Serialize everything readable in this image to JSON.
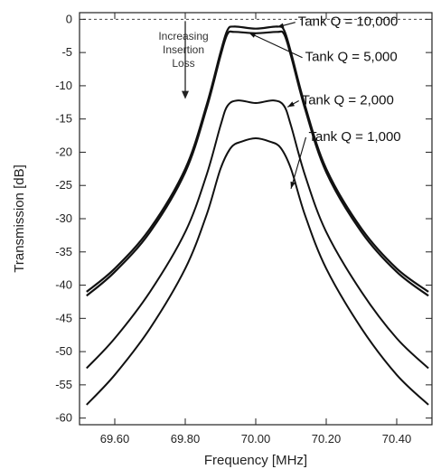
{
  "chart_data": {
    "type": "line",
    "title": "",
    "xlabel": "Frequency [MHz]",
    "ylabel": "Transmission [dB]",
    "xlim": [
      69.5,
      70.5
    ],
    "ylim": [
      -61,
      1
    ],
    "x_ticks": [
      {
        "value": 69.6,
        "label": "69.60"
      },
      {
        "value": 69.8,
        "label": "69.80"
      },
      {
        "value": 70.0,
        "label": "70.00"
      },
      {
        "value": 70.2,
        "label": "70.20"
      },
      {
        "value": 70.4,
        "label": "70.40"
      }
    ],
    "y_ticks": [
      {
        "value": 0,
        "label": "0"
      },
      {
        "value": -5,
        "label": "-5"
      },
      {
        "value": -10,
        "label": "-10"
      },
      {
        "value": -15,
        "label": "-15"
      },
      {
        "value": -20,
        "label": "-20"
      },
      {
        "value": -25,
        "label": "-25"
      },
      {
        "value": -30,
        "label": "-30"
      },
      {
        "value": -35,
        "label": "-35"
      },
      {
        "value": -40,
        "label": "-40"
      },
      {
        "value": -45,
        "label": "-45"
      },
      {
        "value": -50,
        "label": "-50"
      },
      {
        "value": -55,
        "label": "-55"
      },
      {
        "value": -60,
        "label": "-60"
      }
    ],
    "grid": false,
    "reference_line": {
      "y": 0,
      "style": "dashed"
    },
    "annotation": {
      "lines": [
        "Increasing",
        "Insertion",
        "Loss"
      ],
      "arrow_from_y": 0,
      "arrow_to_y": -12,
      "arrow_x": 69.8
    },
    "series": [
      {
        "name": "Tank Q = 10,000",
        "x": [
          69.52,
          69.6,
          69.7,
          69.8,
          69.86,
          69.9,
          69.92,
          69.94,
          70.0,
          70.06,
          70.08,
          70.1,
          70.14,
          70.2,
          70.3,
          70.4,
          70.49
        ],
        "y": [
          -41.0,
          -37.5,
          -31.5,
          -22.5,
          -13.0,
          -5.0,
          -1.6,
          -1.1,
          -1.4,
          -1.1,
          -1.6,
          -5.0,
          -13.0,
          -22.5,
          -31.5,
          -37.5,
          -41.0
        ]
      },
      {
        "name": "Tank Q = 5,000",
        "x": [
          69.52,
          69.6,
          69.7,
          69.8,
          69.86,
          69.9,
          69.92,
          69.94,
          70.0,
          70.06,
          70.08,
          70.1,
          70.14,
          70.2,
          70.3,
          70.4,
          70.49
        ],
        "y": [
          -41.6,
          -38.0,
          -32.0,
          -23.0,
          -13.5,
          -5.5,
          -2.2,
          -1.9,
          -2.1,
          -1.9,
          -2.2,
          -5.5,
          -13.5,
          -23.0,
          -32.0,
          -38.0,
          -41.6
        ]
      },
      {
        "name": "Tank Q = 2,000",
        "x": [
          69.52,
          69.6,
          69.7,
          69.8,
          69.86,
          69.9,
          69.92,
          69.95,
          70.0,
          70.05,
          70.08,
          70.1,
          70.14,
          70.2,
          70.3,
          70.4,
          70.49
        ],
        "y": [
          -52.5,
          -48.0,
          -41.0,
          -32.0,
          -23.5,
          -16.0,
          -13.0,
          -12.2,
          -12.6,
          -12.2,
          -13.0,
          -16.0,
          -23.5,
          -32.0,
          -41.0,
          -48.0,
          -52.5
        ]
      },
      {
        "name": "Tank Q = 1,000",
        "x": [
          69.52,
          69.6,
          69.7,
          69.8,
          69.86,
          69.9,
          69.93,
          69.96,
          70.0,
          70.04,
          70.07,
          70.1,
          70.14,
          70.2,
          70.3,
          70.4,
          70.49
        ],
        "y": [
          -58.0,
          -53.5,
          -46.5,
          -37.5,
          -29.5,
          -22.5,
          -19.3,
          -18.4,
          -17.9,
          -18.4,
          -19.3,
          -22.5,
          -29.5,
          -37.5,
          -46.5,
          -53.5,
          -58.0
        ]
      }
    ],
    "legend_labels": [
      {
        "series": 0,
        "text": "Tank Q = 10,000",
        "x": 70.12,
        "y": -1.0,
        "point_x": 70.06,
        "point_y": -1.2
      },
      {
        "series": 1,
        "text": "Tank Q = 5,000",
        "x": 70.14,
        "y": -6.3,
        "point_x": 69.98,
        "point_y": -2.0
      },
      {
        "series": 2,
        "text": "Tank Q = 2,000",
        "x": 70.13,
        "y": -12.8,
        "point_x": 70.09,
        "point_y": -13.2
      },
      {
        "series": 3,
        "text": "Tank Q = 1,000",
        "x": 70.15,
        "y": -18.3,
        "point_x": 70.1,
        "point_y": -25.5
      }
    ]
  }
}
